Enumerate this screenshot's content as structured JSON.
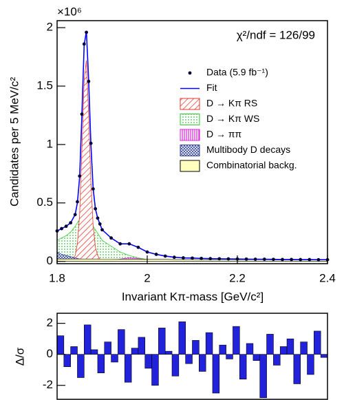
{
  "chart_data": [
    {
      "type": "line",
      "multiplier": "×10⁶",
      "ylabel": "Candidates per 5 MeV/c²",
      "xlabel": "Invariant Kπ-mass [GeV/c²]",
      "annotation": "χ²/ndf = 126/99",
      "xlim": [
        1.8,
        2.4
      ],
      "ylim": [
        -0.02,
        2.06
      ],
      "xticks": [
        1.8,
        2,
        2.2,
        2.4
      ],
      "yticks": [
        0,
        0.5,
        1,
        1.5,
        2
      ],
      "legend": "right",
      "x": [
        1.8,
        1.81,
        1.82,
        1.83,
        1.84,
        1.845,
        1.85,
        1.855,
        1.86,
        1.865,
        1.87,
        1.875,
        1.88,
        1.885,
        1.89,
        1.895,
        1.9,
        1.92,
        1.94,
        1.96,
        1.98,
        2.0,
        2.02,
        2.04,
        2.06,
        2.08,
        2.1,
        2.12,
        2.14,
        2.16,
        2.18,
        2.2,
        2.22,
        2.24,
        2.26,
        2.28,
        2.3,
        2.32,
        2.34,
        2.36,
        2.38,
        2.4
      ],
      "series": [
        {
          "name": "Data (5.9 fb⁻¹)",
          "color": "#000033",
          "style": "points",
          "values": [
            0.26,
            0.28,
            0.3,
            0.33,
            0.4,
            0.51,
            0.73,
            1.26,
            1.86,
            1.96,
            1.54,
            1.01,
            0.62,
            0.45,
            0.37,
            0.32,
            0.27,
            0.2,
            0.15,
            0.15,
            0.12,
            0.08,
            0.06,
            0.045,
            0.035,
            0.03,
            0.028,
            0.025,
            0.023,
            0.022,
            0.021,
            0.02,
            0.019,
            0.018,
            0.018,
            0.017,
            0.016,
            0.016,
            0.015,
            0.015,
            0.014,
            0.014
          ]
        },
        {
          "name": "Fit",
          "color": "#0000ff",
          "style": "line",
          "values": [
            0.26,
            0.28,
            0.3,
            0.33,
            0.4,
            0.5,
            0.72,
            1.25,
            1.85,
            1.97,
            1.55,
            1.0,
            0.62,
            0.45,
            0.37,
            0.32,
            0.27,
            0.2,
            0.15,
            0.15,
            0.12,
            0.08,
            0.06,
            0.045,
            0.035,
            0.03,
            0.028,
            0.025,
            0.023,
            0.022,
            0.021,
            0.02,
            0.019,
            0.018,
            0.018,
            0.017,
            0.016,
            0.016,
            0.015,
            0.015,
            0.014,
            0.014
          ]
        },
        {
          "name": "D → Kπ RS",
          "color": "#e8332a",
          "style": "area",
          "values": [
            0,
            0,
            0,
            0,
            0.05,
            0.15,
            0.4,
            0.95,
            1.55,
            1.72,
            1.25,
            0.68,
            0.3,
            0.12,
            0.05,
            0.02,
            0.01,
            0,
            0,
            0,
            0,
            0,
            0,
            0,
            0,
            0,
            0,
            0,
            0,
            0,
            0,
            0,
            0,
            0,
            0,
            0,
            0,
            0,
            0,
            0,
            0,
            0
          ]
        },
        {
          "name": "D → Kπ WS",
          "color": "#33cc33",
          "style": "area",
          "values": [
            0.18,
            0.2,
            0.22,
            0.25,
            0.3,
            0.33,
            0.36,
            0.38,
            0.4,
            0.4,
            0.38,
            0.35,
            0.3,
            0.27,
            0.24,
            0.21,
            0.18,
            0.13,
            0.08,
            0.05,
            0.03,
            0.015,
            0.008,
            0.004,
            0.002,
            0,
            0,
            0,
            0,
            0,
            0,
            0,
            0,
            0,
            0,
            0,
            0,
            0,
            0,
            0,
            0,
            0
          ]
        },
        {
          "name": "D → ππ",
          "color": "#e020e0",
          "style": "area",
          "values": [
            0,
            0,
            0,
            0,
            0,
            0,
            0,
            0,
            0,
            0,
            0,
            0,
            0,
            0,
            0,
            0,
            0,
            0.005,
            0.02,
            0.03,
            0.025,
            0.01,
            0.003,
            0,
            0,
            0,
            0,
            0,
            0,
            0,
            0,
            0,
            0,
            0,
            0,
            0,
            0,
            0,
            0,
            0,
            0,
            0
          ]
        },
        {
          "name": "Multibody D decays",
          "color": "#334499",
          "style": "area",
          "values": [
            0.08,
            0.06,
            0.05,
            0.04,
            0.03,
            0.025,
            0.02,
            0.017,
            0.014,
            0.011,
            0.008,
            0.006,
            0.004,
            0.002,
            0.001,
            0,
            0,
            0,
            0,
            0,
            0,
            0,
            0,
            0,
            0,
            0,
            0,
            0,
            0,
            0,
            0,
            0,
            0,
            0,
            0,
            0,
            0,
            0,
            0,
            0,
            0,
            0
          ]
        },
        {
          "name": "Combinatorial backg.",
          "color": "#ffffc0",
          "style": "area",
          "values": [
            0.02,
            0.02,
            0.02,
            0.02,
            0.02,
            0.02,
            0.02,
            0.02,
            0.02,
            0.02,
            0.02,
            0.02,
            0.02,
            0.02,
            0.02,
            0.019,
            0.019,
            0.019,
            0.018,
            0.018,
            0.018,
            0.017,
            0.017,
            0.017,
            0.016,
            0.016,
            0.016,
            0.015,
            0.015,
            0.015,
            0.015,
            0.014,
            0.014,
            0.014,
            0.014,
            0.013,
            0.013,
            0.013,
            0.013,
            0.012,
            0.012,
            0.012
          ]
        }
      ]
    },
    {
      "type": "histogram",
      "ylabel": "Δ/σ",
      "color": "#2222dd",
      "xlim": [
        1.8,
        2.4
      ],
      "ylim": [
        -2.9,
        2.65
      ],
      "yticks": [
        -2,
        0,
        2
      ],
      "bins": [
        1.8,
        1.815,
        1.83,
        1.845,
        1.86,
        1.875,
        1.89,
        1.905,
        1.92,
        1.935,
        1.95,
        1.965,
        1.98,
        1.995,
        2.01,
        2.025,
        2.04,
        2.055,
        2.07,
        2.085,
        2.1,
        2.115,
        2.13,
        2.145,
        2.16,
        2.175,
        2.19,
        2.205,
        2.22,
        2.235,
        2.25,
        2.265,
        2.28,
        2.295,
        2.31,
        2.325,
        2.34,
        2.355,
        2.37,
        2.385,
        2.4
      ],
      "values": [
        1.2,
        -0.8,
        0.5,
        -1.5,
        1.9,
        0.3,
        -1.2,
        0.8,
        -0.5,
        1.6,
        -1.8,
        0.4,
        1.1,
        -0.9,
        -2.0,
        1.7,
        0.2,
        -1.4,
        2.1,
        -0.6,
        0.9,
        -1.1,
        1.4,
        -2.5,
        0.6,
        -0.3,
        1.8,
        -1.6,
        0.7,
        -0.4,
        -2.8,
        1.3,
        -0.7,
        0.5,
        1.0,
        -1.9,
        0.8,
        -1.3,
        1.5,
        -0.2
      ]
    }
  ]
}
